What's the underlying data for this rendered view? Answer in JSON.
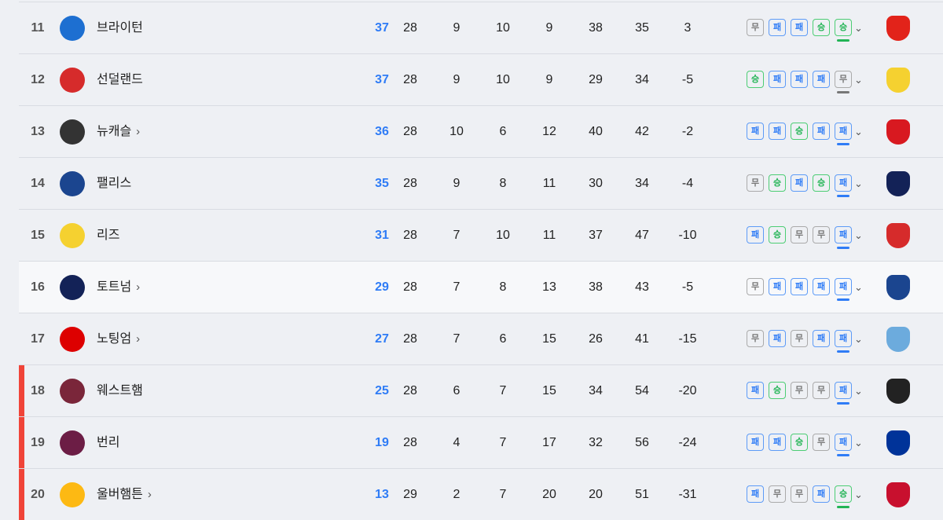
{
  "colors": {
    "win": "#22b455",
    "loss": "#2f7cf6",
    "draw": "#777777",
    "relegation": "#f04438",
    "points": "#2f7cf6"
  },
  "form_labels": {
    "W": "승",
    "L": "패",
    "D": "무"
  },
  "rows": [
    {
      "rank": "11",
      "team": "브라이턴",
      "link": false,
      "pts": "37",
      "p": "28",
      "w": "9",
      "d": "10",
      "l": "9",
      "gf": "38",
      "ga": "35",
      "gd": "3",
      "form": [
        "D",
        "L",
        "L",
        "W",
        "W"
      ],
      "form_text": [
        "무",
        "패",
        "패",
        "승",
        "승"
      ],
      "logo_color": "#1d6fd1",
      "next_color": "#e2231a"
    },
    {
      "rank": "12",
      "team": "선덜랜드",
      "link": false,
      "pts": "37",
      "p": "28",
      "w": "9",
      "d": "10",
      "l": "9",
      "gf": "29",
      "ga": "34",
      "gd": "-5",
      "form": [
        "W",
        "L",
        "L",
        "L",
        "D"
      ],
      "form_text": [
        "승",
        "패",
        "패",
        "패",
        "무"
      ],
      "logo_color": "#d62b2b",
      "next_color": "#f5d130"
    },
    {
      "rank": "13",
      "team": "뉴캐슬",
      "link": true,
      "pts": "36",
      "p": "28",
      "w": "10",
      "d": "6",
      "l": "12",
      "gf": "40",
      "ga": "42",
      "gd": "-2",
      "form": [
        "L",
        "L",
        "W",
        "L",
        "L"
      ],
      "form_text": [
        "패",
        "패",
        "승",
        "패",
        "패"
      ],
      "logo_color": "#333333",
      "next_color": "#d81920"
    },
    {
      "rank": "14",
      "team": "팰리스",
      "link": false,
      "pts": "35",
      "p": "28",
      "w": "9",
      "d": "8",
      "l": "11",
      "gf": "30",
      "ga": "34",
      "gd": "-4",
      "form": [
        "D",
        "W",
        "L",
        "W",
        "L"
      ],
      "form_text": [
        "무",
        "승",
        "패",
        "승",
        "패"
      ],
      "logo_color": "#1b458f",
      "next_color": "#132257"
    },
    {
      "rank": "15",
      "team": "리즈",
      "link": false,
      "pts": "31",
      "p": "28",
      "w": "7",
      "d": "10",
      "l": "11",
      "gf": "37",
      "ga": "47",
      "gd": "-10",
      "form": [
        "L",
        "W",
        "D",
        "D",
        "L"
      ],
      "form_text": [
        "패",
        "승",
        "무",
        "무",
        "패"
      ],
      "logo_color": "#f5d130",
      "next_color": "#d62b2b"
    },
    {
      "rank": "16",
      "team": "토트넘",
      "link": true,
      "pts": "29",
      "p": "28",
      "w": "7",
      "d": "8",
      "l": "13",
      "gf": "38",
      "ga": "43",
      "gd": "-5",
      "form": [
        "D",
        "L",
        "L",
        "L",
        "L"
      ],
      "form_text": [
        "무",
        "패",
        "패",
        "패",
        "패"
      ],
      "logo_color": "#132257",
      "next_color": "#1b458f"
    },
    {
      "rank": "17",
      "team": "노팅엄",
      "link": true,
      "pts": "27",
      "p": "28",
      "w": "7",
      "d": "6",
      "l": "15",
      "gf": "26",
      "ga": "41",
      "gd": "-15",
      "form": [
        "D",
        "L",
        "D",
        "L",
        "L"
      ],
      "form_text": [
        "무",
        "패",
        "무",
        "패",
        "패"
      ],
      "logo_color": "#dd0000",
      "next_color": "#6cabdd"
    },
    {
      "rank": "18",
      "team": "웨스트햄",
      "link": false,
      "pts": "25",
      "p": "28",
      "w": "6",
      "d": "7",
      "l": "15",
      "gf": "34",
      "ga": "54",
      "gd": "-20",
      "form": [
        "L",
        "W",
        "D",
        "D",
        "L"
      ],
      "form_text": [
        "패",
        "승",
        "무",
        "무",
        "패"
      ],
      "logo_color": "#7a263a",
      "next_color": "#222222"
    },
    {
      "rank": "19",
      "team": "번리",
      "link": false,
      "pts": "19",
      "p": "28",
      "w": "4",
      "d": "7",
      "l": "17",
      "gf": "32",
      "ga": "56",
      "gd": "-24",
      "form": [
        "L",
        "L",
        "W",
        "D",
        "L"
      ],
      "form_text": [
        "패",
        "패",
        "승",
        "무",
        "패"
      ],
      "logo_color": "#6c1d45",
      "next_color": "#003399"
    },
    {
      "rank": "20",
      "team": "울버햄튼",
      "link": true,
      "pts": "13",
      "p": "29",
      "w": "2",
      "d": "7",
      "l": "20",
      "gf": "20",
      "ga": "51",
      "gd": "-31",
      "form": [
        "L",
        "D",
        "D",
        "L",
        "W"
      ],
      "form_text": [
        "패",
        "무",
        "무",
        "패",
        "승"
      ],
      "logo_color": "#fdb913",
      "next_color": "#c8102e"
    }
  ]
}
